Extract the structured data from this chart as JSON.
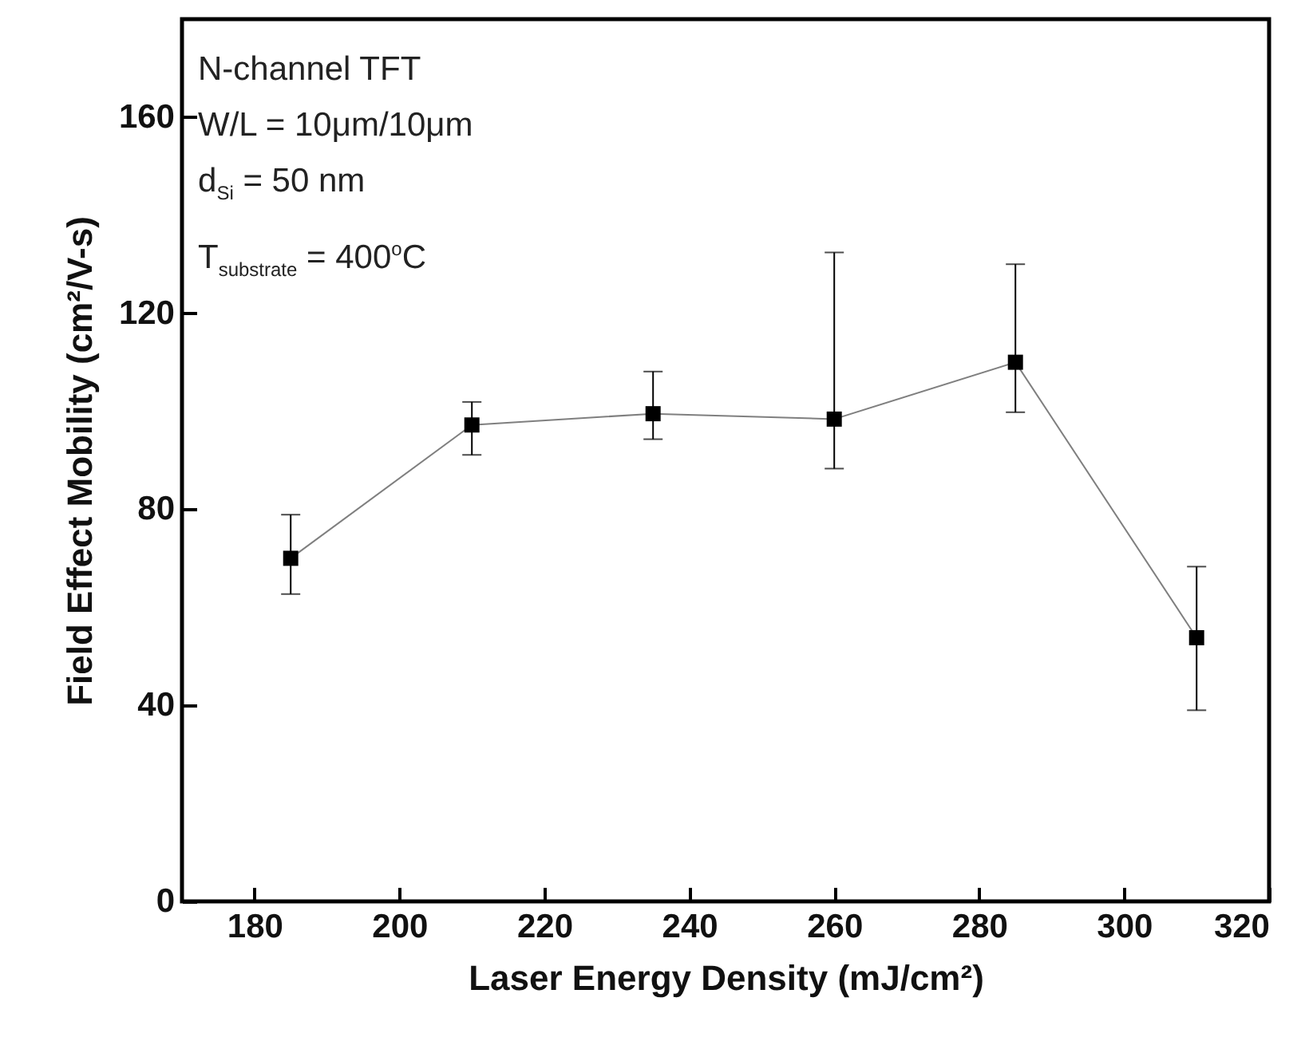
{
  "chart_data": {
    "type": "line",
    "xlabel": "Laser Energy Density (mJ/cm²)",
    "ylabel": "Field Effect Mobility (cm²/V-s)",
    "annotations": [
      "N-channel TFT",
      "W/L = 10μm/10μm",
      "d$_{Si}$ = 50 nm",
      "T$_{substrate}$ = 400$^{o}$C"
    ],
    "x": [
      185,
      210,
      235,
      260,
      285,
      310
    ],
    "series": [
      {
        "color": "#000000",
        "values": [
          70,
          97.2,
          99.5,
          98.4,
          110,
          53.8
        ],
        "errors": [
          [
            62.7,
            78.9
          ],
          [
            91.1,
            101.9
          ],
          [
            94.3,
            108.1
          ],
          [
            88.3,
            132.4
          ],
          [
            99.8,
            130
          ],
          [
            39,
            68.3
          ]
        ]
      }
    ],
    "xlim": [
      170,
      320
    ],
    "xticks": [
      180,
      200,
      220,
      240,
      260,
      280,
      300,
      320
    ],
    "ylim": [
      0,
      180
    ],
    "yticks": [
      0,
      40,
      80,
      120,
      160
    ],
    "marker": "square",
    "line_style": "solid",
    "grid": false
  }
}
